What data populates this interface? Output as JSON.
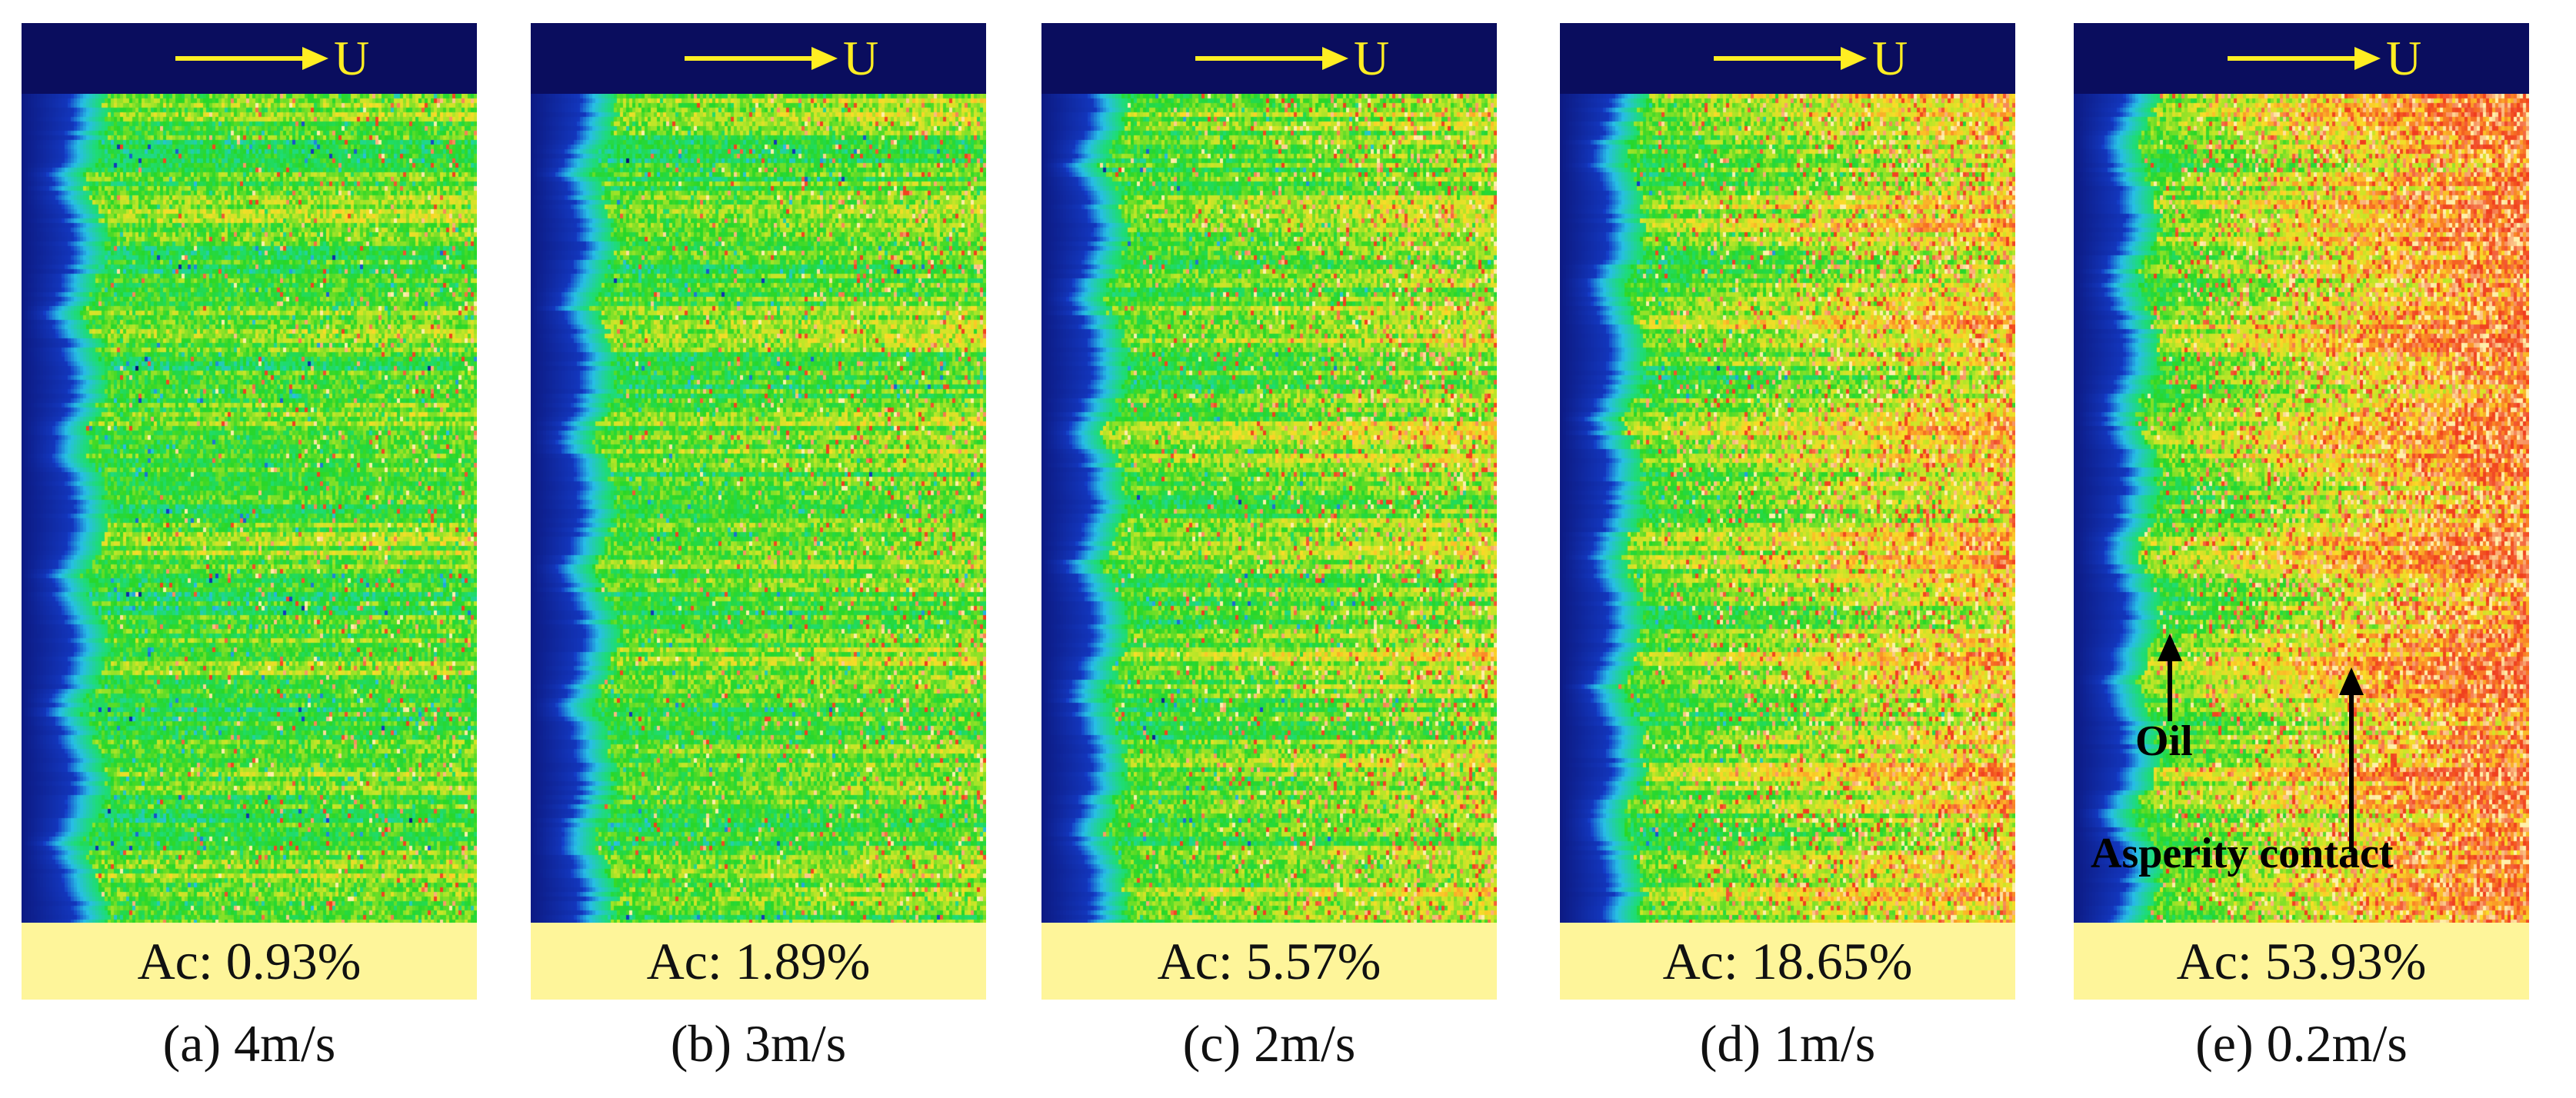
{
  "colors": {
    "header_bg": "#0a0d5e",
    "arrow": "#ffee22",
    "ac_bg": "#fef59a",
    "annotation": "#000000"
  },
  "flow_direction_label": "U",
  "panels": [
    {
      "ac_label": "Ac: 0.93%",
      "caption": "(a) 4m/s",
      "contact_fraction": 0.0093
    },
    {
      "ac_label": "Ac: 1.89%",
      "caption": "(b) 3m/s",
      "contact_fraction": 0.0189
    },
    {
      "ac_label": "Ac: 5.57%",
      "caption": "(c) 2m/s",
      "contact_fraction": 0.0557
    },
    {
      "ac_label": "Ac: 18.65%",
      "caption": "(d) 1m/s",
      "contact_fraction": 0.1865
    },
    {
      "ac_label": "Ac: 53.93%",
      "caption": "(e) 0.2m/s",
      "contact_fraction": 0.5393
    }
  ],
  "annotations": {
    "oil_label": "Oil",
    "asperity_label": "Asperity contact"
  }
}
